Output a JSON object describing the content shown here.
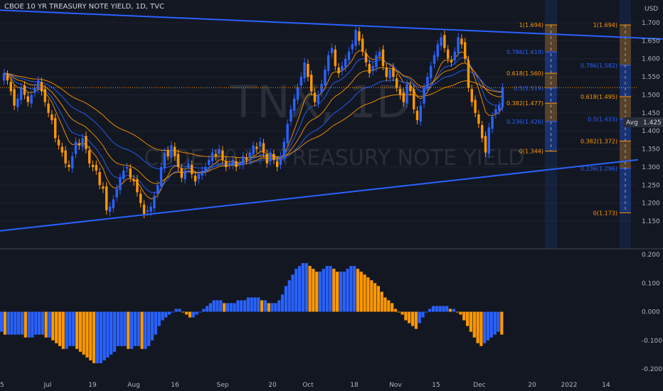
{
  "header": {
    "title": "CBOE 10 YR TREASURY NOTE YIELD, 1D, TVC",
    "currency": "USD"
  },
  "watermark": {
    "ticker": "TNX, 1D",
    "name": "CBOE 10 YR TREASURY NOTE YIELD"
  },
  "colors": {
    "background": "#131722",
    "up": "#2962ff",
    "down": "#ff9800",
    "trendline": "#2962ff",
    "fib_orange": "#ff9800",
    "fib_blue": "#2962ff",
    "grid": "#1e222d",
    "text": "#b2b5be"
  },
  "chart_data": [
    {
      "type": "candlestick",
      "title": "CBOE 10 YR TREASURY NOTE YIELD, 1D, TVC",
      "y_range": [
        1.14,
        1.735
      ],
      "y_ticks": [
        "1.700",
        "1.650",
        "1.600",
        "1.550",
        "1.500",
        "1.450",
        "1.400",
        "1.350",
        "1.300",
        "1.250",
        "1.200",
        "1.150"
      ],
      "x_ticks": [
        "5",
        "Jul",
        "19",
        "Aug",
        "16",
        "Sep",
        "20",
        "Oct",
        "18",
        "Nov",
        "15",
        "Dec",
        "20",
        "2022",
        "14"
      ],
      "price_label": "1.425",
      "avg_label": "Avg",
      "closes": [
        1.56,
        1.54,
        1.51,
        1.47,
        1.49,
        1.52,
        1.5,
        1.48,
        1.5,
        1.52,
        1.54,
        1.51,
        1.48,
        1.45,
        1.43,
        1.38,
        1.36,
        1.34,
        1.31,
        1.3,
        1.33,
        1.37,
        1.36,
        1.38,
        1.35,
        1.31,
        1.3,
        1.29,
        1.25,
        1.24,
        1.18,
        1.19,
        1.21,
        1.24,
        1.27,
        1.29,
        1.3,
        1.27,
        1.26,
        1.23,
        1.2,
        1.17,
        1.18,
        1.19,
        1.22,
        1.25,
        1.3,
        1.34,
        1.33,
        1.36,
        1.33,
        1.3,
        1.27,
        1.29,
        1.31,
        1.28,
        1.26,
        1.28,
        1.29,
        1.3,
        1.32,
        1.34,
        1.33,
        1.35,
        1.32,
        1.3,
        1.31,
        1.32,
        1.3,
        1.31,
        1.33,
        1.32,
        1.34,
        1.36,
        1.35,
        1.37,
        1.34,
        1.31,
        1.34,
        1.32,
        1.3,
        1.33,
        1.37,
        1.42,
        1.46,
        1.49,
        1.52,
        1.55,
        1.59,
        1.55,
        1.51,
        1.48,
        1.5,
        1.53,
        1.57,
        1.61,
        1.63,
        1.58,
        1.56,
        1.58,
        1.6,
        1.62,
        1.64,
        1.68,
        1.65,
        1.62,
        1.59,
        1.56,
        1.58,
        1.61,
        1.62,
        1.58,
        1.55,
        1.57,
        1.55,
        1.52,
        1.5,
        1.48,
        1.53,
        1.51,
        1.46,
        1.43,
        1.47,
        1.52,
        1.55,
        1.58,
        1.61,
        1.64,
        1.66,
        1.63,
        1.6,
        1.59,
        1.62,
        1.66,
        1.64,
        1.6,
        1.52,
        1.48,
        1.45,
        1.42,
        1.38,
        1.34,
        1.41,
        1.44,
        1.46,
        1.47,
        1.52
      ]
    },
    {
      "type": "bar",
      "title": "",
      "y_range": [
        -0.2,
        0.2
      ],
      "y_ticks": [
        "0.200",
        "0.100",
        "0.000",
        "-0.100",
        "-0.200"
      ],
      "values": [
        -0.07,
        -0.08,
        -0.08,
        -0.08,
        -0.08,
        -0.08,
        -0.08,
        -0.09,
        -0.09,
        -0.09,
        -0.08,
        -0.08,
        -0.08,
        -0.09,
        -0.09,
        -0.1,
        -0.11,
        -0.12,
        -0.13,
        -0.13,
        -0.12,
        -0.12,
        -0.13,
        -0.14,
        -0.15,
        -0.16,
        -0.17,
        -0.18,
        -0.18,
        -0.18,
        -0.17,
        -0.16,
        -0.15,
        -0.14,
        -0.12,
        -0.12,
        -0.12,
        -0.13,
        -0.13,
        -0.12,
        -0.12,
        -0.13,
        -0.13,
        -0.12,
        -0.1,
        -0.08,
        -0.05,
        -0.03,
        -0.02,
        -0.01,
        0.0,
        0.01,
        0.01,
        0.0,
        -0.01,
        -0.02,
        -0.02,
        -0.01,
        0.0,
        0.01,
        0.02,
        0.03,
        0.04,
        0.04,
        0.04,
        0.03,
        0.03,
        0.03,
        0.03,
        0.04,
        0.04,
        0.04,
        0.05,
        0.05,
        0.05,
        0.05,
        0.04,
        0.04,
        0.03,
        0.03,
        0.03,
        0.04,
        0.06,
        0.09,
        0.11,
        0.13,
        0.15,
        0.16,
        0.17,
        0.17,
        0.16,
        0.15,
        0.14,
        0.14,
        0.15,
        0.16,
        0.16,
        0.15,
        0.14,
        0.14,
        0.14,
        0.15,
        0.16,
        0.16,
        0.15,
        0.14,
        0.13,
        0.12,
        0.11,
        0.1,
        0.09,
        0.07,
        0.05,
        0.04,
        0.03,
        0.01,
        0.0,
        -0.01,
        -0.03,
        -0.04,
        -0.05,
        -0.06,
        -0.04,
        -0.02,
        0.0,
        0.01,
        0.02,
        0.02,
        0.02,
        0.02,
        0.02,
        0.01,
        0.01,
        0.0,
        -0.01,
        -0.03,
        -0.05,
        -0.07,
        -0.09,
        -0.11,
        -0.12,
        -0.11,
        -0.1,
        -0.09,
        -0.08,
        -0.07,
        -0.08
      ]
    }
  ],
  "trendlines": [
    {
      "name": "upper",
      "from": [
        0,
        1.735
      ],
      "to": [
        932,
        1.655
      ]
    },
    {
      "name": "lower",
      "from": [
        0,
        1.123
      ],
      "to": [
        897,
        1.32
      ]
    }
  ],
  "fib_left": {
    "levels": [
      {
        "label": "1(1.694)",
        "value": 1.694,
        "color": "#ff9800"
      },
      {
        "label": "0.786(1.619)",
        "value": 1.619,
        "color": "#2962ff"
      },
      {
        "label": "0.618(1.560)",
        "value": 1.56,
        "color": "#ff9800"
      },
      {
        "label": "0.5(1.519)",
        "value": 1.519,
        "color": "#2962ff"
      },
      {
        "label": "0.382(1.477)",
        "value": 1.477,
        "color": "#ff9800"
      },
      {
        "label": "0.236(1.426)",
        "value": 1.426,
        "color": "#2962ff"
      },
      {
        "label": "0(1.344)",
        "value": 1.344,
        "color": "#ff9800"
      }
    ]
  },
  "fib_right": {
    "levels": [
      {
        "label": "1(1.694)",
        "value": 1.694,
        "color": "#ff9800"
      },
      {
        "label": "0.786(1.582)",
        "value": 1.582,
        "color": "#2962ff"
      },
      {
        "label": "0.618(1.495)",
        "value": 1.495,
        "color": "#ff9800"
      },
      {
        "label": "0.5(1.433)",
        "value": 1.433,
        "color": "#2962ff"
      },
      {
        "label": "0.382(1.372)",
        "value": 1.372,
        "color": "#ff9800"
      },
      {
        "label": "0.236(1.296)",
        "value": 1.296,
        "color": "#2962ff"
      },
      {
        "label": "0(1.173)",
        "value": 1.173,
        "color": "#ff9800"
      }
    ]
  }
}
